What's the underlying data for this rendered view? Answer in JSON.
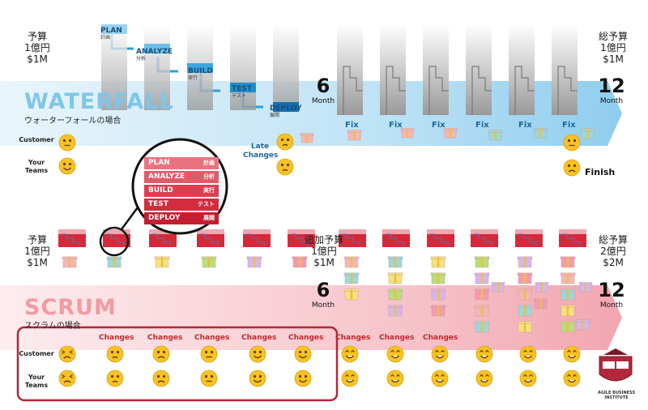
{
  "waterfall": {
    "title": "WATERFALL",
    "subtitle": "ウォーターフォールの場合",
    "budget_start": [
      "予算",
      "1億円",
      "$1M"
    ],
    "budget_end": [
      "総予算",
      "1億円",
      "$1M"
    ],
    "phases": [
      {
        "en": "PLAN",
        "ja": "計画"
      },
      {
        "en": "ANALYZE",
        "ja": "分析"
      },
      {
        "en": "BUILD",
        "ja": "実行"
      },
      {
        "en": "TEST",
        "ja": "テスト"
      },
      {
        "en": "DEPLOY",
        "ja": "展開"
      }
    ],
    "mid_number": "6",
    "mid_month": "Month",
    "end_number": "12",
    "end_month": "Month",
    "fix_label": "Fix",
    "late_changes": "Late\nChanges",
    "customer_label": "Customer",
    "teams_label": "Your\nTeams",
    "finish_label": "Finish"
  },
  "legend": [
    {
      "en": "PLAN",
      "ja": "計画"
    },
    {
      "en": "ANALYZE",
      "ja": "分析"
    },
    {
      "en": "BUILD",
      "ja": "実行"
    },
    {
      "en": "TEST",
      "ja": "テスト"
    },
    {
      "en": "DEPLOY",
      "ja": "展開"
    }
  ],
  "scrum": {
    "title": "SCRUM",
    "subtitle": "スクラムの場合",
    "budget_start": [
      "予算",
      "1億円",
      "$1M"
    ],
    "budget_mid": [
      "追加予算",
      "1億円",
      "$1M"
    ],
    "budget_end": [
      "総予算",
      "2億円",
      "$2M"
    ],
    "mid_number": "6",
    "mid_month": "Month",
    "end_number": "12",
    "end_month": "Month",
    "changes_label": "Changes",
    "customer_label": "Customer",
    "teams_label": "Your\nTeams"
  },
  "logo_text": "AGILE BUSINESS INSTITUTE",
  "colors": {
    "blue": "#27a3dc",
    "red": "#d7283a",
    "face": "#f7c322",
    "frame": "#b0283a"
  }
}
